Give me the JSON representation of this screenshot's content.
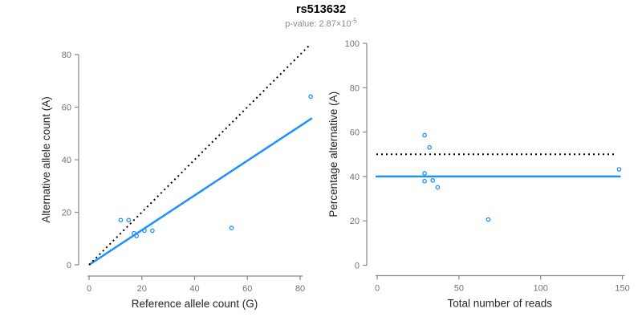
{
  "header": {
    "title": "rs513632",
    "pvalue_text": "p-value: 2.87×10",
    "pvalue_exponent": "-5"
  },
  "colors": {
    "accent_blue": "#1e90ff",
    "dotted_black": "#000000",
    "axis_gray": "#888888",
    "tick_label_gray": "#737373",
    "axis_title_color": "#262626",
    "subtitle_gray": "#8a8a8a",
    "title_color": "#000000",
    "background": "#ffffff"
  },
  "chart_data": [
    {
      "type": "scatter",
      "name": "allele-count-plot",
      "xlabel": "Reference allele count (G)",
      "ylabel": "Alternative allele count (A)",
      "xticks": [
        0,
        20,
        40,
        60,
        80
      ],
      "yticks": [
        0,
        20,
        40,
        60,
        80
      ],
      "xlim": [
        0,
        84.5
      ],
      "ylim": [
        0,
        84
      ],
      "grid": false,
      "points": [
        [
          12,
          17
        ],
        [
          15,
          17
        ],
        [
          17,
          12
        ],
        [
          18,
          11
        ],
        [
          21,
          13
        ],
        [
          24,
          13
        ],
        [
          54,
          14
        ],
        [
          84,
          64
        ]
      ],
      "lines": [
        {
          "name": "regression-line",
          "style": "solid",
          "color": "#1e90ff",
          "x1": 0,
          "y1": 0,
          "x2": 84.5,
          "y2": 55.8
        },
        {
          "name": "identity-line",
          "style": "dotted",
          "color": "#000000",
          "x1": 0,
          "y1": 0,
          "x2": 84,
          "y2": 84
        }
      ]
    },
    {
      "type": "scatter",
      "name": "percentage-reads-plot",
      "xlabel": "Total number of reads",
      "ylabel": "Percentage alternative (A)",
      "xticks": [
        0,
        50,
        100,
        150
      ],
      "yticks": [
        0,
        20,
        40,
        60,
        80,
        100
      ],
      "xlim": [
        0,
        150
      ],
      "ylim": [
        0,
        100
      ],
      "grid": false,
      "points": [
        [
          29,
          58.6
        ],
        [
          32,
          53.1
        ],
        [
          29,
          41.4
        ],
        [
          29,
          37.9
        ],
        [
          34,
          38.2
        ],
        [
          37,
          35.1
        ],
        [
          68,
          20.6
        ],
        [
          148,
          43.2
        ]
      ],
      "lines": [
        {
          "name": "mean-percentage-line",
          "style": "solid",
          "color": "#1e90ff",
          "x1": -1,
          "y1": 40,
          "x2": 149,
          "y2": 40
        },
        {
          "name": "fifty-percent-line",
          "style": "dotted",
          "color": "#000000",
          "x1": -0.5,
          "y1": 50,
          "x2": 146,
          "y2": 50
        }
      ]
    }
  ]
}
